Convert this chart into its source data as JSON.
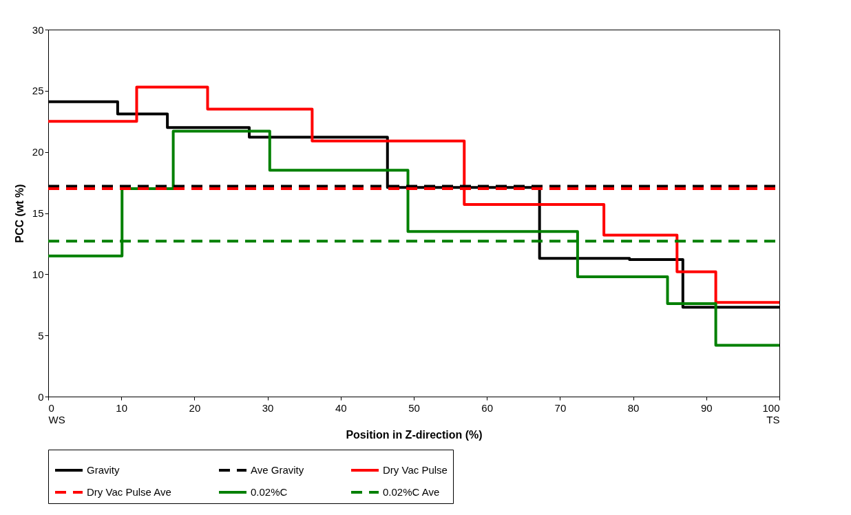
{
  "chart_data": {
    "type": "step",
    "xlabel": "Position in Z-direction (%)",
    "ylabel": "PCC (wt %)",
    "xlim": [
      0,
      100
    ],
    "ylim": [
      0,
      30
    ],
    "xticks": [
      {
        "value": 0,
        "label": "0\nWS"
      },
      10,
      20,
      30,
      40,
      50,
      60,
      70,
      80,
      90,
      {
        "value": 100,
        "label": "100\nTS"
      }
    ],
    "yticks": [
      0,
      5,
      10,
      15,
      20,
      25,
      30
    ],
    "legend": "bottom",
    "series": [
      {
        "name": "Gravity",
        "color": "#000000",
        "line_style": "solid",
        "x": [
          0,
          9.5,
          16.3,
          27.5,
          46.4,
          67.2,
          79.5,
          86.8,
          100
        ],
        "values": [
          24.1,
          23.1,
          22.0,
          21.2,
          17.1,
          11.3,
          11.2,
          7.3,
          7.3
        ]
      },
      {
        "name": "Ave Gravity",
        "color": "#000000",
        "type": "line",
        "line_style": "dashed",
        "x": [
          0,
          100
        ],
        "values": [
          17.2,
          17.2
        ]
      },
      {
        "name": "Dry Vac Pulse",
        "color": "#ff0000",
        "line_style": "solid",
        "x": [
          0,
          12.1,
          21.8,
          36.1,
          56.9,
          76.0,
          86.0,
          91.3,
          100
        ],
        "values": [
          22.5,
          25.3,
          23.5,
          20.9,
          15.7,
          13.2,
          10.2,
          7.7,
          7.7
        ]
      },
      {
        "name": "Dry Vac Pulse Ave",
        "color": "#ff0000",
        "type": "line",
        "line_style": "dashed",
        "x": [
          0,
          100
        ],
        "values": [
          17.0,
          17.0
        ]
      },
      {
        "name": "0.02%C",
        "color": "#008000",
        "line_style": "solid",
        "x": [
          0,
          10.1,
          17.1,
          30.3,
          49.2,
          72.4,
          84.7,
          91.3,
          100
        ],
        "values": [
          11.5,
          17.0,
          21.7,
          18.5,
          13.5,
          9.8,
          7.6,
          4.2,
          4.2
        ]
      },
      {
        "name": "0.02%C Ave",
        "color": "#008000",
        "type": "line",
        "line_style": "dashed",
        "x": [
          0,
          100
        ],
        "values": [
          12.7,
          12.7
        ]
      }
    ]
  }
}
